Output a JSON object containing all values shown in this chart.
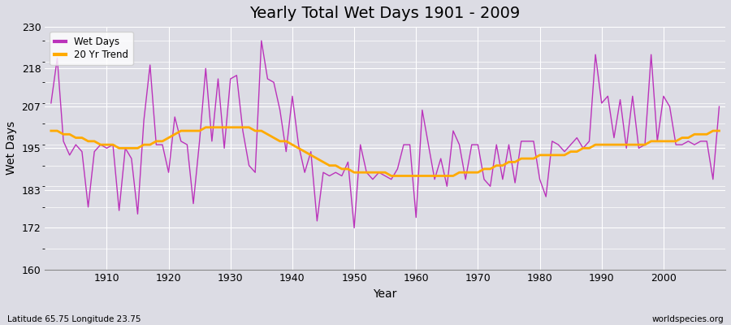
{
  "title": "Yearly Total Wet Days 1901 - 2009",
  "xlabel": "Year",
  "ylabel": "Wet Days",
  "lat_lon_label": "Latitude 65.75 Longitude 23.75",
  "watermark": "worldspecies.org",
  "ylim": [
    160,
    230
  ],
  "yticks": [
    160,
    172,
    183,
    195,
    207,
    218,
    230
  ],
  "bg_color": "#dcdce4",
  "fig_color": "#dcdce4",
  "line_color": "#bb33bb",
  "trend_color": "#ffaa00",
  "years": [
    1901,
    1902,
    1903,
    1904,
    1905,
    1906,
    1907,
    1908,
    1909,
    1910,
    1911,
    1912,
    1913,
    1914,
    1915,
    1916,
    1917,
    1918,
    1919,
    1920,
    1921,
    1922,
    1923,
    1924,
    1925,
    1926,
    1927,
    1928,
    1929,
    1930,
    1931,
    1932,
    1933,
    1934,
    1935,
    1936,
    1937,
    1938,
    1939,
    1940,
    1941,
    1942,
    1943,
    1944,
    1945,
    1946,
    1947,
    1948,
    1949,
    1950,
    1951,
    1952,
    1953,
    1954,
    1955,
    1956,
    1957,
    1958,
    1959,
    1960,
    1961,
    1962,
    1963,
    1964,
    1965,
    1966,
    1967,
    1968,
    1969,
    1970,
    1971,
    1972,
    1973,
    1974,
    1975,
    1976,
    1977,
    1978,
    1979,
    1980,
    1981,
    1982,
    1983,
    1984,
    1985,
    1986,
    1987,
    1988,
    1989,
    1990,
    1991,
    1992,
    1993,
    1994,
    1995,
    1996,
    1997,
    1998,
    1999,
    2000,
    2001,
    2002,
    2003,
    2004,
    2005,
    2006,
    2007,
    2008,
    2009
  ],
  "wet_days": [
    208,
    221,
    197,
    193,
    196,
    194,
    178,
    194,
    196,
    195,
    196,
    177,
    195,
    192,
    176,
    203,
    219,
    196,
    196,
    188,
    204,
    197,
    196,
    179,
    197,
    218,
    197,
    215,
    195,
    215,
    216,
    200,
    190,
    188,
    226,
    215,
    214,
    206,
    194,
    210,
    196,
    188,
    194,
    174,
    188,
    187,
    188,
    187,
    191,
    172,
    196,
    188,
    186,
    188,
    187,
    186,
    189,
    196,
    196,
    175,
    206,
    196,
    186,
    192,
    184,
    200,
    196,
    186,
    196,
    196,
    186,
    184,
    196,
    186,
    196,
    185,
    197,
    197,
    197,
    186,
    181,
    197,
    196,
    194,
    196,
    198,
    195,
    197,
    222,
    208,
    210,
    198,
    209,
    195,
    210,
    195,
    196,
    222,
    197,
    210,
    207,
    196,
    196,
    197,
    196,
    197,
    197,
    186,
    207
  ],
  "trend": [
    200,
    200,
    199,
    199,
    198,
    198,
    197,
    197,
    196,
    196,
    196,
    195,
    195,
    195,
    195,
    196,
    196,
    197,
    197,
    198,
    199,
    200,
    200,
    200,
    200,
    201,
    201,
    201,
    201,
    201,
    201,
    201,
    201,
    200,
    200,
    199,
    198,
    197,
    197,
    196,
    195,
    194,
    193,
    192,
    191,
    190,
    190,
    189,
    189,
    188,
    188,
    188,
    188,
    188,
    188,
    187,
    187,
    187,
    187,
    187,
    187,
    187,
    187,
    187,
    187,
    187,
    188,
    188,
    188,
    188,
    189,
    189,
    190,
    190,
    191,
    191,
    192,
    192,
    192,
    193,
    193,
    193,
    193,
    193,
    194,
    194,
    195,
    195,
    196,
    196,
    196,
    196,
    196,
    196,
    196,
    196,
    196,
    197,
    197,
    197,
    197,
    197,
    198,
    198,
    199,
    199,
    199,
    200,
    200
  ]
}
